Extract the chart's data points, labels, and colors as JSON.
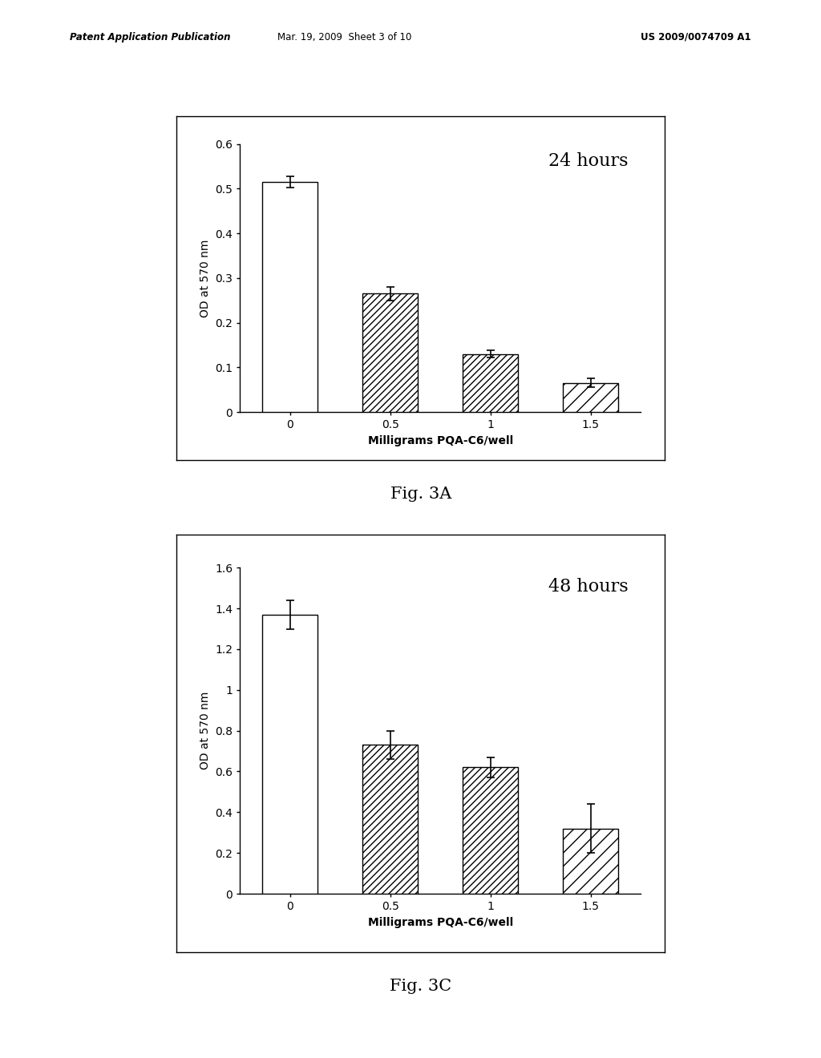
{
  "fig3a": {
    "title": "24 hours",
    "categories": [
      "0",
      "0.5",
      "1",
      "1.5"
    ],
    "values": [
      0.515,
      0.265,
      0.13,
      0.065
    ],
    "errors": [
      0.012,
      0.015,
      0.008,
      0.01
    ],
    "ylabel": "OD at 570 nm",
    "xlabel": "Milligrams PQA-C6/well",
    "ylim": [
      0,
      0.6
    ],
    "yticks": [
      0,
      0.1,
      0.2,
      0.3,
      0.4,
      0.5,
      0.6
    ]
  },
  "fig3c": {
    "title": "48 hours",
    "categories": [
      "0",
      "0.5",
      "1",
      "1.5"
    ],
    "values": [
      1.37,
      0.73,
      0.62,
      0.32
    ],
    "errors": [
      0.07,
      0.07,
      0.05,
      0.12
    ],
    "ylabel": "OD at 570 nm",
    "xlabel": "Milligrams PQA-C6/well",
    "ylim": [
      0,
      1.6
    ],
    "yticks": [
      0,
      0.2,
      0.4,
      0.6,
      0.8,
      1.0,
      1.2,
      1.4,
      1.6
    ]
  },
  "fig3a_label": "Fig. 3A",
  "fig3c_label": "Fig. 3C",
  "header_left": "Patent Application Publication",
  "header_mid": "Mar. 19, 2009  Sheet 3 of 10",
  "header_right": "US 2009/0074709 A1",
  "page_bg": "white"
}
